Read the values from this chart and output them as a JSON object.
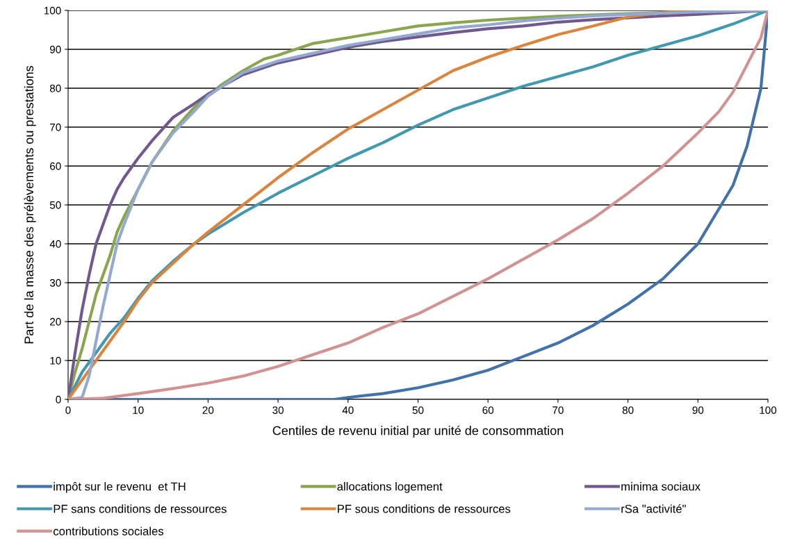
{
  "chart_data": {
    "type": "line",
    "xlabel": "Centiles de revenu initial par unité de consommation",
    "ylabel": "Part de la masse des prélèvements ou prestations",
    "xlim": [
      0,
      100
    ],
    "xticks": [
      0,
      10,
      20,
      30,
      40,
      50,
      60,
      70,
      80,
      90,
      100
    ],
    "ylim": [
      0,
      100
    ],
    "yticks": [
      0,
      10,
      20,
      30,
      40,
      50,
      60,
      70,
      80,
      90,
      100
    ],
    "grid": "y",
    "legend": "bottom",
    "marker": "none",
    "line_style": "solid",
    "series": [
      {
        "name": "impôt sur le revenu  et TH",
        "color": "#4372aa",
        "x": [
          0,
          10,
          20,
          30,
          38,
          40,
          45,
          50,
          55,
          60,
          65,
          70,
          75,
          80,
          85,
          90,
          95,
          97,
          99,
          100
        ],
        "values": [
          0,
          0,
          0,
          0,
          0,
          0.5,
          1.5,
          3,
          5,
          7.5,
          11,
          14.5,
          19,
          24.5,
          31,
          40,
          55,
          65,
          80,
          100
        ]
      },
      {
        "name": "allocations logement",
        "color": "#89a54e",
        "x": [
          0,
          1,
          2,
          3,
          4,
          5,
          6,
          7,
          8,
          10,
          12,
          15,
          18,
          20,
          22,
          25,
          28,
          30,
          35,
          40,
          45,
          50,
          55,
          60,
          65,
          70,
          80,
          90,
          100
        ],
        "values": [
          0,
          7,
          13,
          20,
          27,
          32,
          37,
          43,
          47,
          54,
          61,
          69,
          75,
          78,
          81,
          84.5,
          87.5,
          88.5,
          91.5,
          93,
          94.5,
          96,
          96.8,
          97.5,
          98,
          98.5,
          99.2,
          99.7,
          100
        ]
      },
      {
        "name": "minima sociaux",
        "color": "#71588f",
        "x": [
          0,
          1,
          2,
          3,
          4,
          5,
          6,
          7,
          8,
          10,
          12,
          15,
          18,
          20,
          22,
          25,
          30,
          35,
          40,
          45,
          50,
          55,
          60,
          65,
          70,
          75,
          80,
          85,
          90,
          95,
          100
        ],
        "values": [
          0,
          12,
          23,
          32,
          40,
          45,
          50,
          54,
          57,
          62,
          66.5,
          72.5,
          76,
          78.5,
          80.5,
          83.5,
          86.5,
          88.5,
          90.5,
          92,
          93.2,
          94.3,
          95.3,
          96,
          97,
          97.6,
          98.1,
          98.6,
          99,
          99.5,
          100
        ]
      },
      {
        "name": "PF sans conditions de ressources",
        "color": "#4198af",
        "x": [
          0,
          2,
          4,
          6,
          8,
          10,
          12,
          15,
          18,
          20,
          25,
          30,
          35,
          40,
          45,
          50,
          55,
          60,
          65,
          70,
          75,
          80,
          85,
          90,
          95,
          100
        ],
        "values": [
          0,
          7,
          12,
          17,
          21,
          26,
          30.5,
          35.5,
          40,
          42.5,
          48,
          53,
          57.5,
          62,
          66,
          70.5,
          74.5,
          77.5,
          80.5,
          83,
          85.5,
          88.5,
          91,
          93.5,
          96.5,
          100
        ]
      },
      {
        "name": "PF sous conditions de ressources",
        "color": "#db843d",
        "x": [
          0,
          2,
          4,
          6,
          8,
          10,
          12,
          15,
          18,
          20,
          25,
          30,
          35,
          40,
          45,
          50,
          55,
          60,
          65,
          70,
          75,
          80,
          85,
          90,
          100
        ],
        "values": [
          0,
          5,
          10,
          15,
          20,
          25.5,
          30,
          35,
          40,
          43,
          50,
          57,
          63.5,
          69.5,
          74.5,
          79.5,
          84.5,
          88,
          91,
          93.8,
          96,
          98.3,
          99.5,
          100,
          100
        ]
      },
      {
        "name": "rSa \"activité\"",
        "color": "#93a9cf",
        "x": [
          0,
          2,
          3,
          4,
          5,
          6,
          7,
          8,
          10,
          12,
          15,
          18,
          20,
          22,
          25,
          30,
          35,
          40,
          45,
          50,
          55,
          60,
          65,
          70,
          75,
          80,
          90,
          100
        ],
        "values": [
          0,
          0.5,
          6,
          15,
          24,
          32,
          40,
          45,
          54,
          61,
          68.5,
          74,
          78,
          80.5,
          84,
          87,
          89,
          91,
          92.5,
          94,
          95.5,
          96.3,
          97.3,
          98,
          98.6,
          99,
          99.6,
          100
        ]
      },
      {
        "name": "contributions sociales",
        "color": "#d09392",
        "x": [
          0,
          5,
          10,
          15,
          20,
          25,
          30,
          35,
          40,
          45,
          50,
          55,
          60,
          65,
          70,
          75,
          80,
          85,
          90,
          93,
          95,
          97,
          99,
          100
        ],
        "values": [
          0,
          0.3,
          1.5,
          2.8,
          4.2,
          6,
          8.5,
          11.5,
          14.5,
          18.5,
          22,
          26.5,
          31,
          36,
          41,
          46.5,
          53,
          60,
          68.5,
          74,
          79,
          86,
          93,
          100
        ]
      }
    ]
  }
}
